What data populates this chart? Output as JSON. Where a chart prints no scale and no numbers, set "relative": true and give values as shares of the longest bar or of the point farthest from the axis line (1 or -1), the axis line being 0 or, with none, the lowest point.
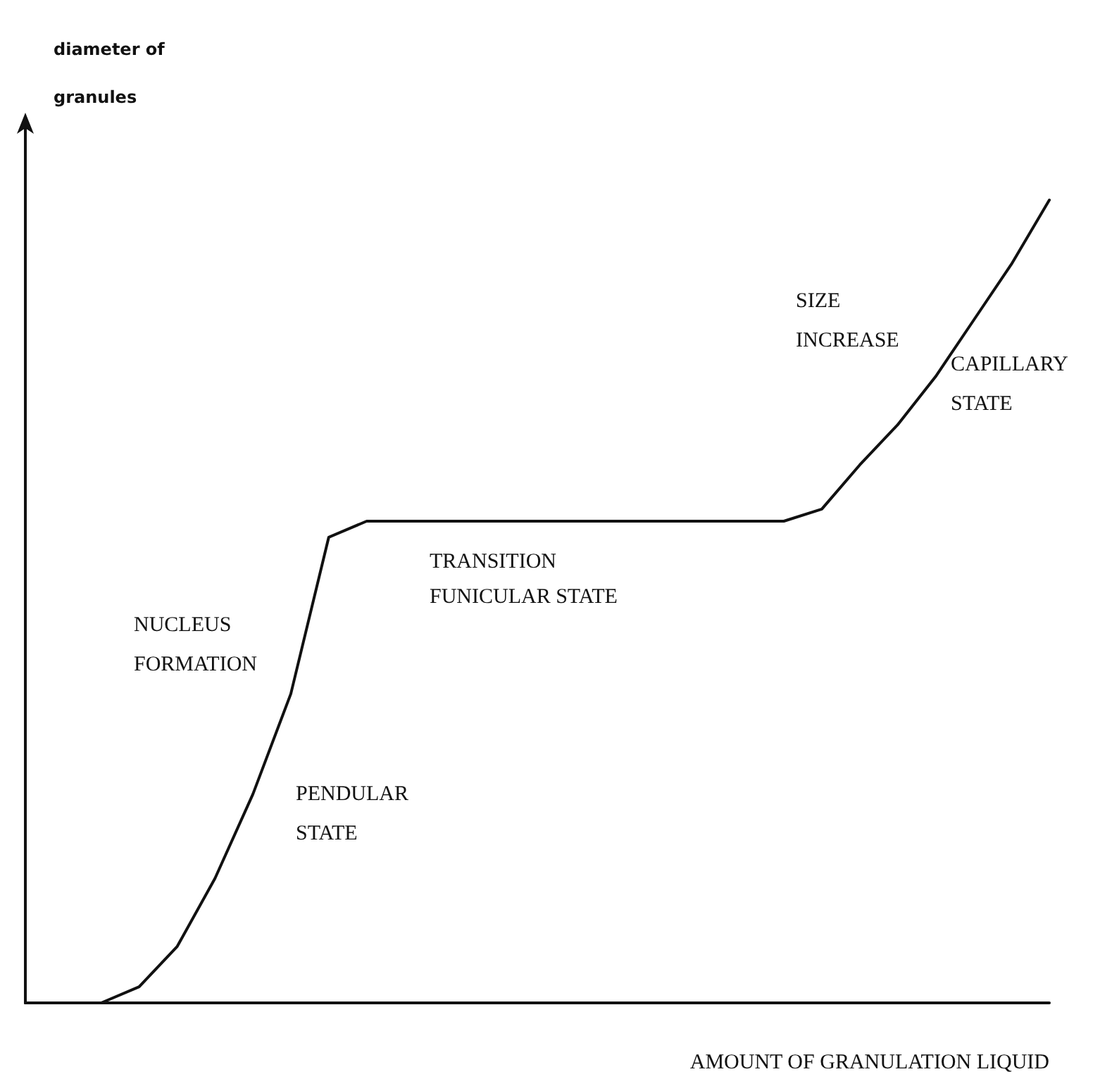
{
  "chart_data": {
    "type": "line",
    "relative": true,
    "ylabel": "diameter of granules",
    "xlabel": "AMOUNT OF GRANULATION LIQUID",
    "categories": [
      null,
      null,
      null,
      null,
      null,
      null,
      null,
      null,
      null,
      null,
      null,
      null,
      null,
      null,
      null,
      null,
      null,
      null,
      null,
      null,
      null,
      null,
      null,
      null,
      null,
      null,
      null,
      null
    ],
    "series": [
      {
        "color": "#111111",
        "values": [
          0,
          0,
          0,
          0.02,
          0.07,
          0.155,
          0.26,
          0.385,
          0.58,
          0.6,
          0.6,
          0.6,
          0.6,
          0.6,
          0.6,
          0.6,
          0.6,
          0.6,
          0.6,
          0.6,
          0.6,
          0.615,
          0.67,
          0.72,
          0.78,
          0.85,
          0.92,
          1
        ]
      }
    ],
    "annotations": [
      "NUCLEUS FORMATION",
      "PENDULAR STATE",
      "TRANSITION",
      "FUNICULAR STATE",
      "SIZE INCREASE",
      "CAPILLARY STATE"
    ],
    "marker": "none",
    "line_style": "solid",
    "grid": false
  }
}
